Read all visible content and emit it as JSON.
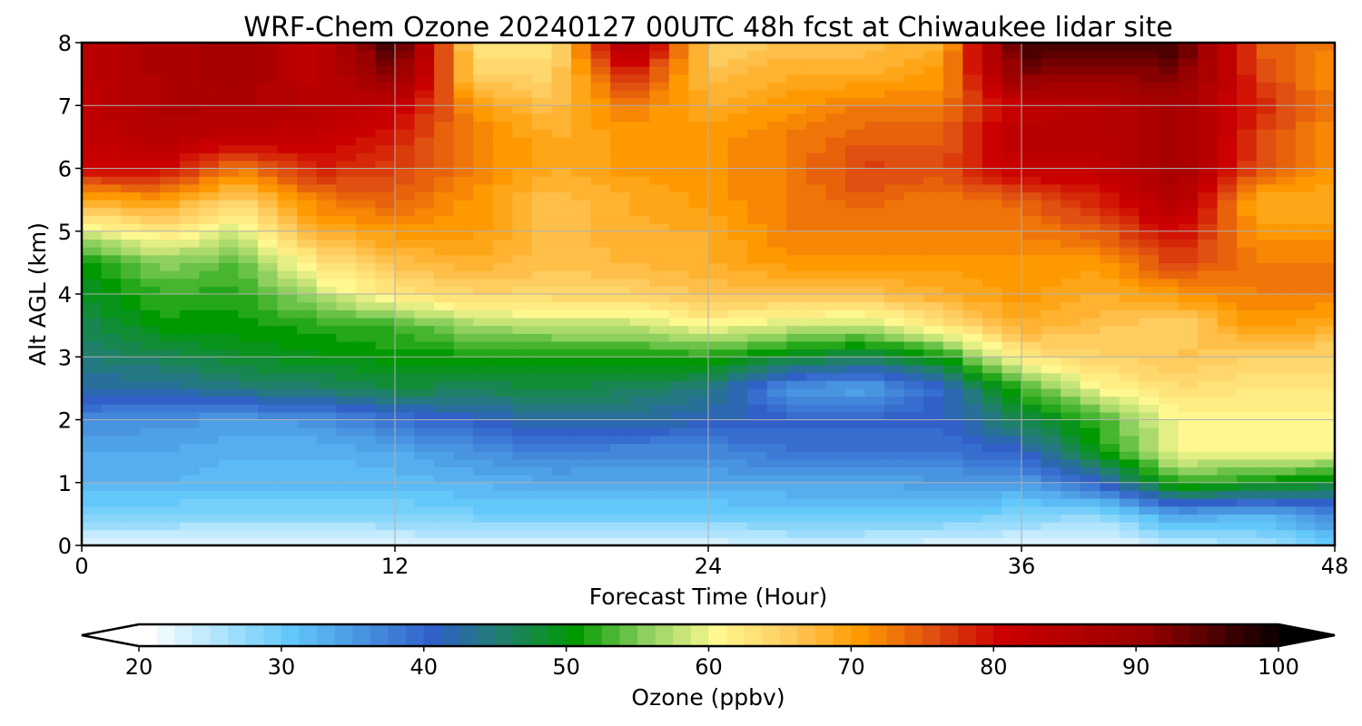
{
  "chart_data": {
    "type": "heatmap",
    "title": "WRF-Chem Ozone  20240127 00UTC 48h fcst at Chiwaukee lidar site",
    "xlabel": "Forecast Time (Hour)",
    "ylabel": "Alt AGL (km)",
    "xlim": [
      0,
      48
    ],
    "ylim": [
      0,
      8
    ],
    "xticks": [
      "0",
      "12",
      "24",
      "36",
      "48"
    ],
    "yticks": [
      "0",
      "1",
      "2",
      "3",
      "4",
      "5",
      "6",
      "7",
      "8"
    ],
    "grid": true,
    "x": [
      0,
      3,
      6,
      9,
      12,
      15,
      18,
      21,
      24,
      27,
      30,
      33,
      36,
      39,
      42,
      45,
      48
    ],
    "y": [
      0,
      0.5,
      1,
      1.5,
      2,
      2.5,
      3,
      3.5,
      4,
      4.5,
      5,
      5.5,
      6,
      6.5,
      7,
      7.5,
      8
    ],
    "z_by_x": [
      [
        22,
        28,
        32,
        33,
        36,
        42,
        44,
        46,
        48,
        50,
        58,
        68,
        80,
        82,
        82,
        83,
        83
      ],
      [
        22,
        28,
        32,
        33,
        35,
        42,
        46,
        50,
        52,
        55,
        62,
        70,
        80,
        84,
        86,
        86,
        86
      ],
      [
        21,
        28,
        31,
        32,
        34,
        44,
        48,
        50,
        51,
        53,
        58,
        64,
        72,
        82,
        86,
        88,
        88
      ],
      [
        21,
        28,
        31,
        32,
        35,
        45,
        49,
        51,
        57,
        62,
        68,
        72,
        78,
        82,
        84,
        82,
        82
      ],
      [
        22,
        28,
        31,
        33,
        38,
        47,
        50,
        52,
        62,
        66,
        70,
        74,
        76,
        78,
        82,
        92,
        98
      ],
      [
        22,
        29,
        32,
        35,
        40,
        46,
        50,
        56,
        64,
        68,
        70,
        70,
        72,
        72,
        70,
        64,
        62
      ],
      [
        22,
        29,
        33,
        37,
        42,
        47,
        50,
        57,
        64,
        66,
        66,
        66,
        68,
        68,
        66,
        64,
        62
      ],
      [
        22,
        29,
        33,
        36,
        42,
        46,
        50,
        57,
        64,
        67,
        68,
        68,
        70,
        70,
        72,
        78,
        88
      ],
      [
        22,
        29,
        33,
        36,
        41,
        44,
        51,
        60,
        66,
        68,
        68,
        70,
        70,
        70,
        68,
        66,
        64
      ],
      [
        23,
        30,
        33,
        38,
        40,
        35,
        48,
        58,
        66,
        70,
        72,
        72,
        72,
        72,
        70,
        68,
        66
      ],
      [
        23,
        30,
        33,
        38,
        40,
        33,
        46,
        57,
        66,
        70,
        72,
        74,
        76,
        74,
        72,
        68,
        66
      ],
      [
        22,
        30,
        34,
        38,
        40,
        40,
        50,
        62,
        68,
        70,
        72,
        72,
        75,
        74,
        72,
        70,
        68
      ],
      [
        22,
        28,
        34,
        40,
        46,
        52,
        62,
        68,
        70,
        70,
        72,
        74,
        82,
        84,
        82,
        92,
        96
      ],
      [
        21,
        27,
        40,
        50,
        52,
        60,
        64,
        66,
        68,
        70,
        74,
        78,
        82,
        84,
        84,
        90,
        96
      ],
      [
        24,
        34,
        52,
        60,
        60,
        63,
        66,
        64,
        70,
        76,
        80,
        85,
        88,
        88,
        88,
        92,
        96
      ],
      [
        25,
        32,
        50,
        60,
        60,
        62,
        64,
        70,
        72,
        72,
        70,
        68,
        75,
        76,
        78,
        76,
        74
      ],
      [
        30,
        36,
        48,
        60,
        60,
        62,
        64,
        68,
        72,
        72,
        70,
        68,
        70,
        70,
        72,
        70,
        72
      ]
    ],
    "colorbar": {
      "label": "Ozone  (ppbv)",
      "range": [
        20,
        100
      ],
      "ticks": [
        "20",
        "30",
        "40",
        "50",
        "60",
        "70",
        "80",
        "90",
        "100"
      ],
      "extend": "both",
      "stops": [
        {
          "v": 20,
          "c": "#ffffff"
        },
        {
          "v": 30,
          "c": "#62c8fa"
        },
        {
          "v": 40,
          "c": "#3060c8"
        },
        {
          "v": 45,
          "c": "#20806a"
        },
        {
          "v": 50,
          "c": "#009900"
        },
        {
          "v": 55,
          "c": "#8ed060"
        },
        {
          "v": 60,
          "c": "#fff890"
        },
        {
          "v": 65,
          "c": "#ffcc60"
        },
        {
          "v": 70,
          "c": "#ff9900"
        },
        {
          "v": 75,
          "c": "#e05010"
        },
        {
          "v": 80,
          "c": "#cc0000"
        },
        {
          "v": 90,
          "c": "#990000"
        },
        {
          "v": 100,
          "c": "#000000"
        }
      ]
    }
  }
}
